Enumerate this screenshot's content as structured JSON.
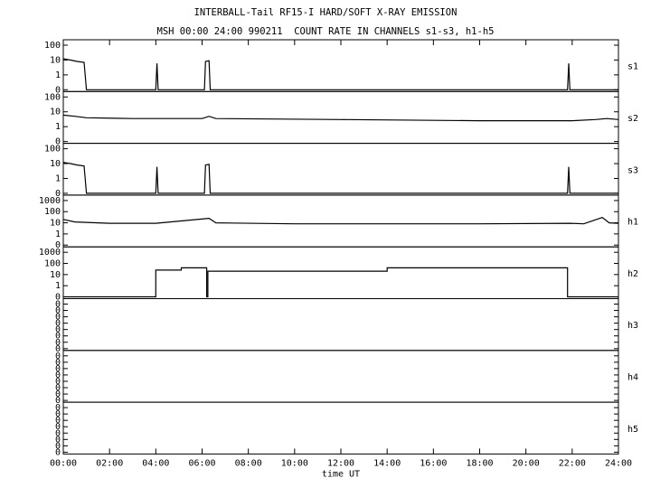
{
  "chart_data": {
    "type": "line",
    "title": "INTERBALL-Tail RF15-I HARD/SOFT X-RAY EMISSION",
    "subtitle": "MSH 00:00 24:00 990211  COUNT RATE IN CHANNELS s1-s3, h1-h5",
    "xlabel": "time UT",
    "x_ticks": [
      "00:00",
      "02:00",
      "04:00",
      "06:00",
      "08:00",
      "10:00",
      "12:00",
      "14:00",
      "16:00",
      "18:00",
      "20:00",
      "22:00",
      "24:00"
    ],
    "xlim_hours": [
      0,
      24
    ],
    "y_scale": "log",
    "grid": false,
    "panels": [
      {
        "name": "s1",
        "y_ticks": [
          "100",
          "10",
          "1",
          "0"
        ],
        "series": [
          [
            0,
            12
          ],
          [
            0.3,
            10
          ],
          [
            0.6,
            8
          ],
          [
            0.9,
            7
          ],
          [
            1.0,
            0
          ],
          [
            4.0,
            0
          ],
          [
            4.05,
            6
          ],
          [
            4.1,
            0
          ],
          [
            6.1,
            0
          ],
          [
            6.15,
            8
          ],
          [
            6.3,
            9
          ],
          [
            6.35,
            0
          ],
          [
            21.8,
            0
          ],
          [
            21.85,
            6
          ],
          [
            21.9,
            0
          ],
          [
            24,
            0
          ]
        ]
      },
      {
        "name": "s2",
        "y_ticks": [
          "100",
          "10",
          "1",
          "0"
        ],
        "series": [
          [
            0,
            6
          ],
          [
            0.5,
            5
          ],
          [
            1,
            4
          ],
          [
            3,
            3.5
          ],
          [
            6,
            3.5
          ],
          [
            6.3,
            5
          ],
          [
            6.6,
            3.5
          ],
          [
            12,
            3
          ],
          [
            18,
            2.5
          ],
          [
            22,
            2.5
          ],
          [
            23,
            3
          ],
          [
            23.5,
            3.5
          ],
          [
            24,
            3
          ]
        ]
      },
      {
        "name": "s3",
        "y_ticks": [
          "100",
          "10",
          "1",
          "0"
        ],
        "series": [
          [
            0,
            12
          ],
          [
            0.3,
            10
          ],
          [
            0.6,
            8
          ],
          [
            0.9,
            7
          ],
          [
            1.0,
            0
          ],
          [
            4.0,
            0
          ],
          [
            4.05,
            6
          ],
          [
            4.1,
            0
          ],
          [
            6.1,
            0
          ],
          [
            6.15,
            8
          ],
          [
            6.3,
            9
          ],
          [
            6.35,
            0
          ],
          [
            21.8,
            0
          ],
          [
            21.85,
            6
          ],
          [
            21.9,
            0
          ],
          [
            24,
            0
          ]
        ]
      },
      {
        "name": "h1",
        "y_ticks": [
          "1000",
          "100",
          "10",
          "1",
          "0"
        ],
        "series": [
          [
            0,
            20
          ],
          [
            0.5,
            12
          ],
          [
            2,
            9
          ],
          [
            4,
            9
          ],
          [
            6.3,
            25
          ],
          [
            6.6,
            10
          ],
          [
            10,
            8
          ],
          [
            14,
            8
          ],
          [
            18,
            8
          ],
          [
            21.9,
            9
          ],
          [
            22.5,
            8
          ],
          [
            23.3,
            30
          ],
          [
            23.6,
            10
          ],
          [
            24,
            9
          ]
        ]
      },
      {
        "name": "h2",
        "y_ticks": [
          "1000",
          "100",
          "10",
          "1",
          "0"
        ],
        "series": [
          [
            0,
            0
          ],
          [
            4.0,
            0
          ],
          [
            4.0,
            25
          ],
          [
            5.1,
            25
          ],
          [
            5.1,
            40
          ],
          [
            6.2,
            40
          ],
          [
            6.2,
            0
          ],
          [
            6.25,
            0
          ],
          [
            6.25,
            20
          ],
          [
            14.0,
            20
          ],
          [
            14.0,
            40
          ],
          [
            21.8,
            40
          ],
          [
            21.8,
            0
          ],
          [
            24,
            0
          ]
        ]
      },
      {
        "name": "h3",
        "y_ticks": [
          "0",
          "0",
          "0",
          "0",
          "0",
          "0",
          "0",
          "0"
        ],
        "series": []
      },
      {
        "name": "h4",
        "y_ticks": [
          "0",
          "0",
          "0",
          "0",
          "0",
          "0",
          "0",
          "0"
        ],
        "series": []
      },
      {
        "name": "h5",
        "y_ticks": [
          "0",
          "0",
          "0",
          "0",
          "0",
          "0",
          "0",
          "0"
        ],
        "series": []
      }
    ]
  }
}
